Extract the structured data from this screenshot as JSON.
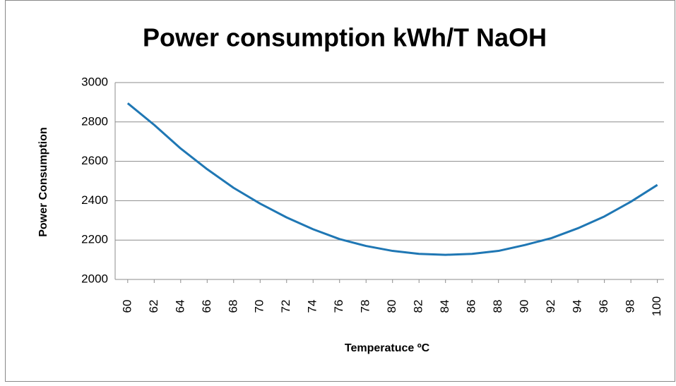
{
  "chart_data": {
    "type": "line",
    "title": "Power consumption kWh/T NaOH",
    "x_label": "Temperatuce ºC",
    "y_label": "Power Consumption",
    "x": [
      60,
      62,
      64,
      66,
      68,
      70,
      72,
      74,
      76,
      78,
      80,
      82,
      84,
      86,
      88,
      90,
      92,
      94,
      96,
      98,
      100
    ],
    "series": [
      {
        "name": "Power consumption",
        "color": "#1f77b4",
        "values": [
          2895,
          2785,
          2665,
          2560,
          2465,
          2385,
          2315,
          2255,
          2205,
          2170,
          2145,
          2130,
          2125,
          2130,
          2145,
          2175,
          2210,
          2260,
          2320,
          2395,
          2480
        ]
      }
    ],
    "xlim": [
      59.05,
      100.5
    ],
    "xticks": [
      60,
      62,
      64,
      66,
      68,
      70,
      72,
      74,
      76,
      78,
      80,
      82,
      84,
      86,
      88,
      90,
      92,
      94,
      96,
      98,
      100
    ],
    "ylim": [
      2000,
      3000
    ],
    "yticks": [
      2000,
      2200,
      2400,
      2600,
      2800,
      3000
    ],
    "grid": true
  }
}
